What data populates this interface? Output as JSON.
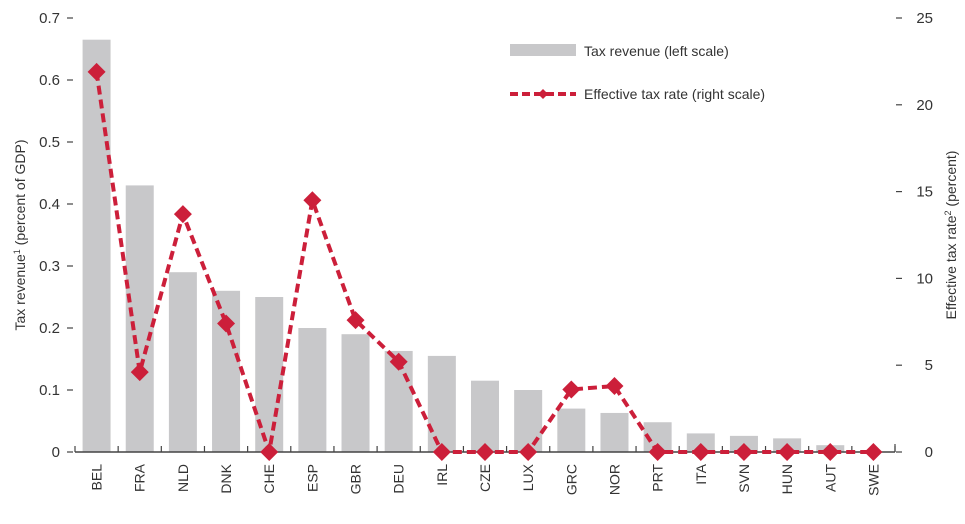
{
  "chart_data": {
    "type": "bar",
    "title": "",
    "categories": [
      "BEL",
      "FRA",
      "NLD",
      "DNK",
      "CHE",
      "ESP",
      "GBR",
      "DEU",
      "IRL",
      "CZE",
      "LUX",
      "GRC",
      "NOR",
      "PRT",
      "ITA",
      "SVN",
      "HUN",
      "AUT",
      "SWE"
    ],
    "series": [
      {
        "name": "Tax revenue (left scale)",
        "type": "bar",
        "axis": "left",
        "color": "#c8c8ca",
        "values": [
          0.665,
          0.43,
          0.29,
          0.26,
          0.25,
          0.2,
          0.19,
          0.163,
          0.155,
          0.115,
          0.1,
          0.07,
          0.063,
          0.048,
          0.03,
          0.026,
          0.022,
          0.011,
          0.0
        ]
      },
      {
        "name": "Effective tax rate (right scale)",
        "type": "line",
        "axis": "right",
        "color": "#cc1f3a",
        "line_style": "dashed",
        "marker": "diamond",
        "values": [
          21.9,
          4.6,
          13.7,
          7.4,
          0.0,
          14.5,
          7.6,
          5.2,
          0.0,
          0.0,
          0.0,
          3.6,
          3.8,
          0.0,
          0.0,
          0.0,
          0.0,
          0.0,
          0.0
        ]
      }
    ],
    "left_axis": {
      "label_main": "Tax revenue",
      "label_sup": "1",
      "label_rest": " (percent of GDP)",
      "ylim": [
        0,
        0.7
      ],
      "ticks": [
        0,
        0.1,
        0.2,
        0.3,
        0.4,
        0.5,
        0.6,
        0.7
      ],
      "tick_labels": [
        "0",
        "0.1",
        "0.2",
        "0.3",
        "0.4",
        "0.5",
        "0.6",
        "0.7"
      ]
    },
    "right_axis": {
      "label_main": "Effective tax rate",
      "label_sup": "2",
      "label_rest": " (percent)",
      "ylim": [
        0,
        25
      ],
      "ticks": [
        0,
        5,
        10,
        15,
        20,
        25
      ],
      "tick_labels": [
        "0",
        "5",
        "10",
        "15",
        "20",
        "25"
      ]
    },
    "xlabel": "",
    "grid": false,
    "legend": {
      "placement": "top-right",
      "entries": [
        "Tax revenue (left scale)",
        "Effective tax rate (right scale)"
      ]
    }
  }
}
